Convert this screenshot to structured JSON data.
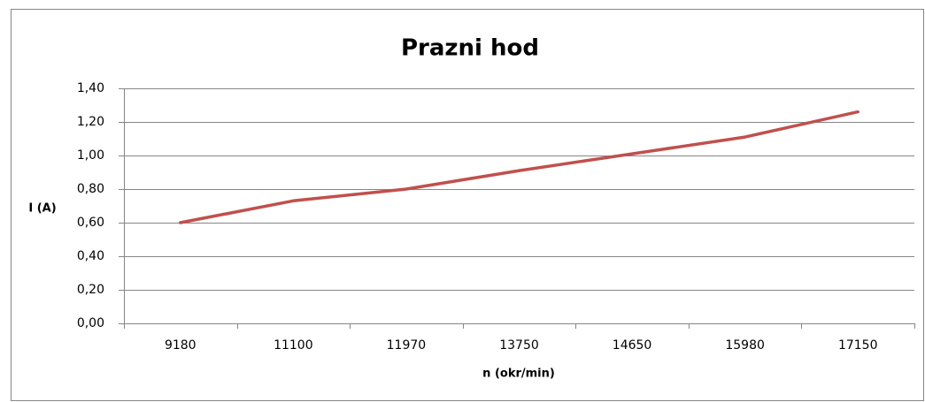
{
  "chart_data": {
    "type": "line",
    "title": "Prazni hod",
    "x_label": "n (okr/min)",
    "y_label": "I (A)",
    "categories": [
      "9180",
      "11100",
      "11970",
      "13750",
      "14650",
      "15980",
      "17150"
    ],
    "values": [
      0.6,
      0.73,
      0.8,
      0.91,
      1.01,
      1.11,
      1.26
    ],
    "color": "#c0504d",
    "ylim": [
      0,
      1.4
    ],
    "yticks": [
      {
        "value": 0,
        "label": "0,00"
      },
      {
        "value": 0.2,
        "label": "0,20"
      },
      {
        "value": 0.4,
        "label": "0,40"
      },
      {
        "value": 0.6,
        "label": "0,60"
      },
      {
        "value": 0.8,
        "label": "0,80"
      },
      {
        "value": 1.0,
        "label": "1,00"
      },
      {
        "value": 1.2,
        "label": "1,20"
      },
      {
        "value": 1.4,
        "label": "1,40"
      }
    ],
    "grid": true
  }
}
